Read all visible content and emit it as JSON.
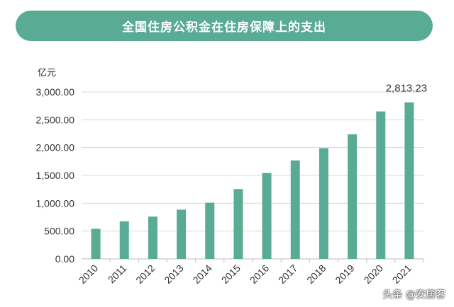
{
  "header": {
    "title": "全国住房公积金在住房保障上的支出"
  },
  "chart_data": {
    "type": "bar",
    "title": "全国住房公积金在住房保障上的支出",
    "ylabel": "亿元",
    "xlabel": "",
    "categories": [
      "2010",
      "2011",
      "2012",
      "2013",
      "2014",
      "2015",
      "2016",
      "2017",
      "2018",
      "2019",
      "2020",
      "2021"
    ],
    "values": [
      540,
      675,
      760,
      885,
      1010,
      1255,
      1545,
      1770,
      1990,
      2240,
      2650,
      2813.23
    ],
    "ylim": [
      0,
      3000
    ],
    "yticks": [
      "0.00",
      "500.00",
      "1,000.00",
      "1,500.00",
      "2,000.00",
      "2,500.00",
      "3,000.00"
    ],
    "data_labels": [
      {
        "category": "2021",
        "text": "2,813.23"
      }
    ],
    "grid": true,
    "bar_color": "#5aab94"
  },
  "watermark": {
    "text": "头条 @安居客"
  }
}
